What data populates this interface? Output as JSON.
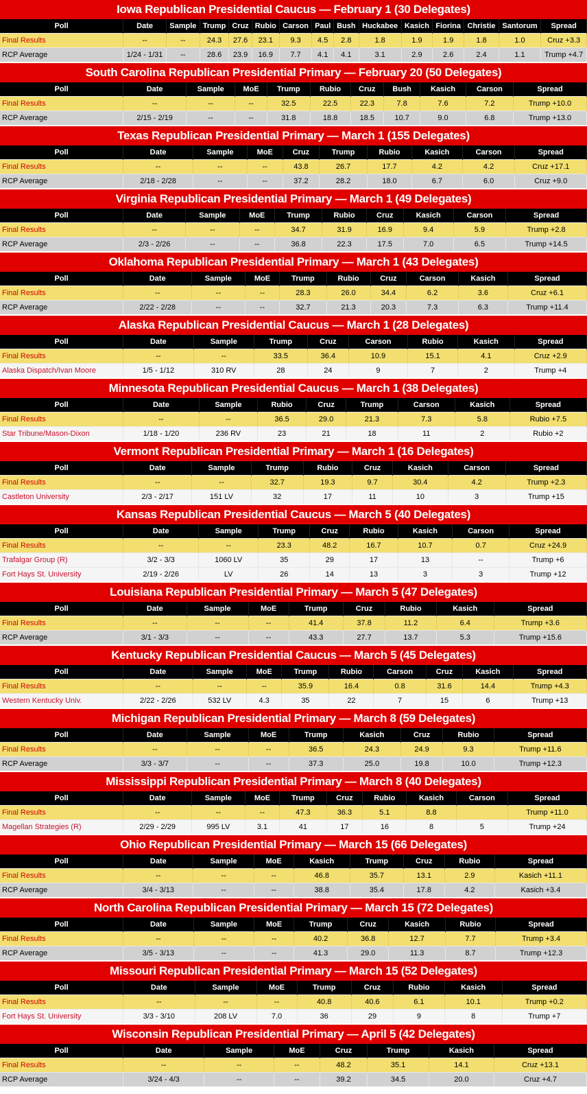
{
  "colors": {
    "title_bg": "#e00000",
    "header_bg": "#000000",
    "final_bg": "#f2df6f",
    "average_bg": "#d1d1d1",
    "poll_bg": "#f5f5f5",
    "accent_text": "#d00000"
  },
  "sections": [
    {
      "title": "Iowa Republican Presidential Caucus — February 1 (30 Delegates)",
      "columns": [
        "Poll",
        "Date",
        "Sample",
        "Trump",
        "Cruz",
        "Rubio",
        "Carson",
        "Paul",
        "Bush",
        "Huckabee",
        "Kasich",
        "Fiorina",
        "Christie",
        "Santorum",
        "Spread"
      ],
      "rows": [
        {
          "type": "final",
          "cells": [
            "Final Results",
            "--",
            "--",
            "24.3",
            "27.6",
            "23.1",
            "9.3",
            "4.5",
            "2.8",
            "1.8",
            "1.9",
            "1.9",
            "1.8",
            "1.0",
            "Cruz +3.3"
          ]
        },
        {
          "type": "average",
          "cells": [
            "RCP Average",
            "1/24 - 1/31",
            "--",
            "28.6",
            "23.9",
            "16.9",
            "7.7",
            "4.1",
            "4.1",
            "3.1",
            "2.9",
            "2.6",
            "2.4",
            "1.1",
            "Trump +4.7"
          ]
        }
      ]
    },
    {
      "title": "South Carolina Republican Presidential Primary — February 20 (50 Delegates)",
      "columns": [
        "Poll",
        "Date",
        "Sample",
        "MoE",
        "Trump",
        "Rubio",
        "Cruz",
        "Bush",
        "Kasich",
        "Carson",
        "Spread"
      ],
      "rows": [
        {
          "type": "final",
          "cells": [
            "Final Results",
            "--",
            "--",
            "--",
            "32.5",
            "22.5",
            "22.3",
            "7.8",
            "7.6",
            "7.2",
            "Trump +10.0"
          ]
        },
        {
          "type": "average",
          "cells": [
            "RCP Average",
            "2/15 - 2/19",
            "--",
            "--",
            "31.8",
            "18.8",
            "18.5",
            "10.7",
            "9.0",
            "6.8",
            "Trump +13.0"
          ]
        }
      ]
    },
    {
      "title": "Texas Republican Presidential Primary — March 1 (155 Delegates)",
      "columns": [
        "Poll",
        "Date",
        "Sample",
        "MoE",
        "Cruz",
        "Trump",
        "Rubio",
        "Kasich",
        "Carson",
        "Spread"
      ],
      "rows": [
        {
          "type": "final",
          "cells": [
            "Final Results",
            "--",
            "--",
            "--",
            "43.8",
            "26.7",
            "17.7",
            "4.2",
            "4.2",
            "Cruz +17.1"
          ]
        },
        {
          "type": "average",
          "cells": [
            "RCP Average",
            "2/18 - 2/28",
            "--",
            "--",
            "37.2",
            "28.2",
            "18.0",
            "6.7",
            "6.0",
            "Cruz +9.0"
          ]
        }
      ]
    },
    {
      "title": "Virginia Republican Presidential Primary — March 1 (49 Delegates)",
      "columns": [
        "Poll",
        "Date",
        "Sample",
        "MoE",
        "Trump",
        "Rubio",
        "Cruz",
        "Kasich",
        "Carson",
        "Spread"
      ],
      "rows": [
        {
          "type": "final",
          "cells": [
            "Final Results",
            "--",
            "--",
            "--",
            "34.7",
            "31.9",
            "16.9",
            "9.4",
            "5.9",
            "Trump +2.8"
          ]
        },
        {
          "type": "average",
          "cells": [
            "RCP Average",
            "2/3 - 2/26",
            "--",
            "--",
            "36.8",
            "22.3",
            "17.5",
            "7.0",
            "6.5",
            "Trump +14.5"
          ]
        }
      ]
    },
    {
      "title": "Oklahoma Republican Presidential Primary — March 1 (43 Delegates)",
      "columns": [
        "Poll",
        "Date",
        "Sample",
        "MoE",
        "Trump",
        "Rubio",
        "Cruz",
        "Carson",
        "Kasich",
        "Spread"
      ],
      "rows": [
        {
          "type": "final",
          "cells": [
            "Final Results",
            "--",
            "--",
            "--",
            "28.3",
            "26.0",
            "34.4",
            "6.2",
            "3.6",
            "Cruz +6.1"
          ]
        },
        {
          "type": "average",
          "cells": [
            "RCP Average",
            "2/22 - 2/28",
            "--",
            "--",
            "32.7",
            "21.3",
            "20.3",
            "7.3",
            "6.3",
            "Trump +11.4"
          ]
        }
      ]
    },
    {
      "title": "Alaska Republican Presidential Caucus — March 1 (28 Delegates)",
      "columns": [
        "Poll",
        "Date",
        "Sample",
        "Trump",
        "Cruz",
        "Carson",
        "Rubio",
        "Kasich",
        "Spread"
      ],
      "rows": [
        {
          "type": "final",
          "cells": [
            "Final Results",
            "--",
            "--",
            "33.5",
            "36.4",
            "10.9",
            "15.1",
            "4.1",
            "Cruz +2.9"
          ]
        },
        {
          "type": "poll",
          "cells": [
            "Alaska Dispatch/Ivan Moore",
            "1/5 - 1/12",
            "310 RV",
            "28",
            "24",
            "9",
            "7",
            "2",
            "Trump +4"
          ]
        }
      ]
    },
    {
      "title": "Minnesota Republican Presidential Caucus — March 1 (38 Delegates)",
      "columns": [
        "Poll",
        "Date",
        "Sample",
        "Rubio",
        "Cruz",
        "Trump",
        "Carson",
        "Kasich",
        "Spread"
      ],
      "rows": [
        {
          "type": "final",
          "cells": [
            "Final Results",
            "--",
            "--",
            "36.5",
            "29.0",
            "21.3",
            "7.3",
            "5.8",
            "Rubio +7.5"
          ]
        },
        {
          "type": "poll",
          "cells": [
            "Star Tribune/Mason-Dixon",
            "1/18 - 1/20",
            "236 RV",
            "23",
            "21",
            "18",
            "11",
            "2",
            "Rubio +2"
          ]
        }
      ]
    },
    {
      "title": "Vermont Republican Presidential Primary — March 1 (16 Delegates)",
      "columns": [
        "Poll",
        "Date",
        "Sample",
        "Trump",
        "Rubio",
        "Cruz",
        "Kasich",
        "Carson",
        "Spread"
      ],
      "rows": [
        {
          "type": "final",
          "cells": [
            "Final Results",
            "--",
            "--",
            "32.7",
            "19.3",
            "9.7",
            "30.4",
            "4.2",
            "Trump +2.3"
          ]
        },
        {
          "type": "poll",
          "cells": [
            "Castleton University",
            "2/3 - 2/17",
            "151 LV",
            "32",
            "17",
            "11",
            "10",
            "3",
            "Trump +15"
          ]
        }
      ]
    },
    {
      "title": "Kansas Republican Presidential Caucus — March 5 (40 Delegates)",
      "columns": [
        "Poll",
        "Date",
        "Sample",
        "Trump",
        "Cruz",
        "Rubio",
        "Kasich",
        "Carson",
        "Spread"
      ],
      "rows": [
        {
          "type": "final",
          "cells": [
            "Final Results",
            "--",
            "--",
            "23.3",
            "48.2",
            "16.7",
            "10.7",
            "0.7",
            "Cruz +24.9"
          ]
        },
        {
          "type": "poll",
          "cells": [
            "Trafalgar Group (R)",
            "3/2 - 3/3",
            "1060 LV",
            "35",
            "29",
            "17",
            "13",
            "--",
            "Trump +6"
          ]
        },
        {
          "type": "poll",
          "cells": [
            "Fort Hays St. University",
            "2/19 - 2/26",
            "LV",
            "26",
            "14",
            "13",
            "3",
            "3",
            "Trump +12"
          ]
        }
      ]
    },
    {
      "title": "Louisiana Republican Presidential Primary — March 5 (47 Delegates)",
      "columns": [
        "Poll",
        "Date",
        "Sample",
        "MoE",
        "Trump",
        "Cruz",
        "Rubio",
        "Kasich",
        "Spread"
      ],
      "rows": [
        {
          "type": "final",
          "cells": [
            "Final Results",
            "--",
            "--",
            "--",
            "41.4",
            "37.8",
            "11.2",
            "6.4",
            "Trump +3.6"
          ]
        },
        {
          "type": "average",
          "cells": [
            "RCP Average",
            "3/1 - 3/3",
            "--",
            "--",
            "43.3",
            "27.7",
            "13.7",
            "5.3",
            "Trump +15.6"
          ]
        }
      ]
    },
    {
      "title": "Kentucky Republican Presidential Caucus — March 5 (45 Delegates)",
      "columns": [
        "Poll",
        "Date",
        "Sample",
        "MoE",
        "Trump",
        "Rubio",
        "Carson",
        "Cruz",
        "Kasich",
        "Spread"
      ],
      "rows": [
        {
          "type": "final",
          "cells": [
            "Final Results",
            "--",
            "--",
            "--",
            "35.9",
            "16.4",
            "0.8",
            "31.6",
            "14.4",
            "Trump +4.3"
          ]
        },
        {
          "type": "poll",
          "cells": [
            "Western Kentucky Univ.",
            "2/22 - 2/26",
            "532 LV",
            "4.3",
            "35",
            "22",
            "7",
            "15",
            "6",
            "Trump +13"
          ]
        }
      ]
    },
    {
      "title": "Michigan Republican Presidential Primary — March 8 (59 Delegates)",
      "columns": [
        "Poll",
        "Date",
        "Sample",
        "MoE",
        "Trump",
        "Kasich",
        "Cruz",
        "Rubio",
        "Spread"
      ],
      "rows": [
        {
          "type": "final",
          "cells": [
            "Final Results",
            "--",
            "--",
            "--",
            "36.5",
            "24.3",
            "24.9",
            "9.3",
            "Trump +11.6"
          ]
        },
        {
          "type": "average",
          "cells": [
            "RCP Average",
            "3/3 - 3/7",
            "--",
            "--",
            "37.3",
            "25.0",
            "19.8",
            "10.0",
            "Trump +12.3"
          ]
        }
      ]
    },
    {
      "title": "Mississippi Republican Presidential Primary — March 8 (40 Delegates)",
      "columns": [
        "Poll",
        "Date",
        "Sample",
        "MoE",
        "Trump",
        "Cruz",
        "Rubio",
        "Kasich",
        "Carson",
        "Spread"
      ],
      "rows": [
        {
          "type": "final",
          "cells": [
            "Final Results",
            "--",
            "--",
            "--",
            "47.3",
            "36.3",
            "5.1",
            "8.8",
            "",
            "Trump +11.0"
          ]
        },
        {
          "type": "poll",
          "cells": [
            "Magellan Strategies (R)",
            "2/29 - 2/29",
            "995 LV",
            "3.1",
            "41",
            "17",
            "16",
            "8",
            "5",
            "Trump +24"
          ]
        }
      ]
    },
    {
      "title": "Ohio Republican Presidential Primary — March 15 (66 Delegates)",
      "columns": [
        "Poll",
        "Date",
        "Sample",
        "MoE",
        "Kasich",
        "Trump",
        "Cruz",
        "Rubio",
        "Spread"
      ],
      "rows": [
        {
          "type": "final",
          "cells": [
            "Final Results",
            "--",
            "--",
            "--",
            "46.8",
            "35.7",
            "13.1",
            "2.9",
            "Kasich +11.1"
          ]
        },
        {
          "type": "average",
          "cells": [
            "RCP Average",
            "3/4 - 3/13",
            "--",
            "--",
            "38.8",
            "35.4",
            "17.8",
            "4.2",
            "Kasich +3.4"
          ]
        }
      ]
    },
    {
      "title": "North Carolina Republican Presidential Primary — March 15 (72 Delegates)",
      "columns": [
        "Poll",
        "Date",
        "Sample",
        "MoE",
        "Trump",
        "Cruz",
        "Kasich",
        "Rubio",
        "Spread"
      ],
      "rows": [
        {
          "type": "final",
          "cells": [
            "Final Results",
            "--",
            "--",
            "--",
            "40.2",
            "36.8",
            "12.7",
            "7.7",
            "Trump +3.4"
          ]
        },
        {
          "type": "average",
          "cells": [
            "RCP Average",
            "3/5 - 3/13",
            "--",
            "--",
            "41.3",
            "29.0",
            "11.3",
            "8.7",
            "Trump +12.3"
          ]
        }
      ]
    },
    {
      "title": "Missouri Republican Presidential Primary — March 15 (52 Delegates)",
      "columns": [
        "Poll",
        "Date",
        "Sample",
        "MoE",
        "Trump",
        "Cruz",
        "Rubio",
        "Kasich",
        "Spread"
      ],
      "rows": [
        {
          "type": "final",
          "cells": [
            "Final Results",
            "--",
            "--",
            "--",
            "40.8",
            "40.6",
            "6.1",
            "10.1",
            "Trump +0.2"
          ]
        },
        {
          "type": "poll",
          "cells": [
            "Fort Hays St. University",
            "3/3 - 3/10",
            "208 LV",
            "7.0",
            "36",
            "29",
            "9",
            "8",
            "Trump +7"
          ]
        }
      ]
    },
    {
      "title": "Wisconsin Republican Presidential Primary — April 5 (42 Delegates)",
      "columns": [
        "Poll",
        "Date",
        "Sample",
        "MoE",
        "Cruz",
        "Trump",
        "Kasich",
        "Spread"
      ],
      "rows": [
        {
          "type": "final",
          "cells": [
            "Final Results",
            "--",
            "--",
            "--",
            "48.2",
            "35.1",
            "14.1",
            "Cruz +13.1"
          ]
        },
        {
          "type": "average",
          "cells": [
            "RCP Average",
            "3/24 - 4/3",
            "--",
            "--",
            "39.2",
            "34.5",
            "20.0",
            "Cruz +4.7"
          ]
        }
      ]
    }
  ]
}
